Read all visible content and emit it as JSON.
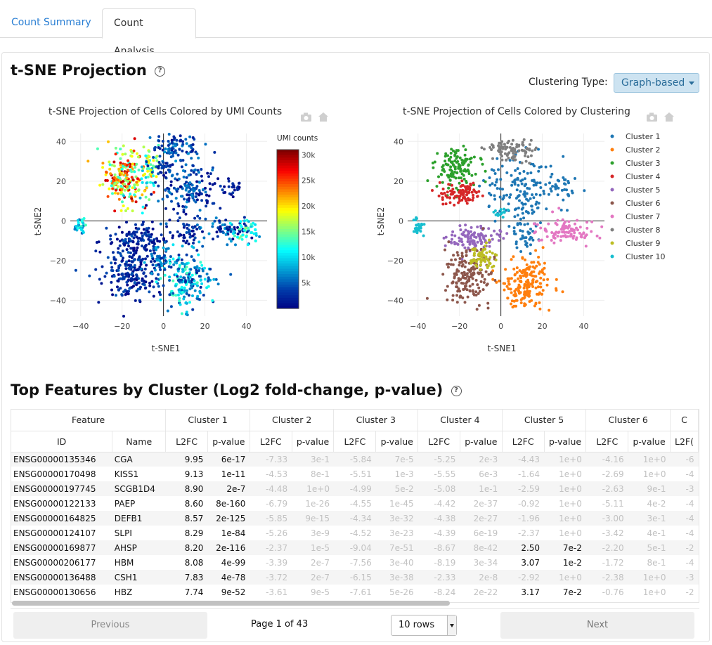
{
  "tabs": [
    {
      "label": "Count Summary"
    },
    {
      "label": "Count Analysis"
    }
  ],
  "tsne_section": {
    "title": "t-SNE Projection",
    "help_glyph": "?",
    "clustering_type_label": "Clustering Type:",
    "clustering_type_value": "Graph-based"
  },
  "features_section": {
    "title": "Top Features by Cluster (Log2 fold-change, p-value)",
    "help_glyph": "?"
  },
  "chart_data": [
    {
      "type": "scatter",
      "title": "t-SNE Projection of Cells Colored by UMI Counts",
      "xlabel": "t-SNE1",
      "ylabel": "t-SNE2",
      "xlim": [
        -45,
        50
      ],
      "ylim": [
        -48,
        44
      ],
      "xticks": [
        -40,
        -20,
        0,
        20,
        40
      ],
      "yticks": [
        40,
        20,
        0,
        -20,
        -40
      ],
      "colorbar": {
        "title": "UMI counts",
        "range": [
          0,
          31000
        ],
        "ticks": [
          {
            "value": 30000,
            "label": "30k"
          },
          {
            "value": 25000,
            "label": "25k"
          },
          {
            "value": 20000,
            "label": "20k"
          },
          {
            "value": 15000,
            "label": "15k"
          },
          {
            "value": 10000,
            "label": "10k"
          },
          {
            "value": 5000,
            "label": "5k"
          }
        ]
      },
      "groups": [
        {
          "cx": -19,
          "cy": 22,
          "sx": 5,
          "sy": 7,
          "n": 200,
          "umi": [
            12000,
            30000
          ]
        },
        {
          "cx": -9,
          "cy": 25,
          "sx": 3,
          "sy": 8,
          "n": 60,
          "umi": [
            8000,
            22000
          ]
        },
        {
          "cx": 5,
          "cy": 36,
          "sx": 6,
          "sy": 4,
          "n": 90,
          "umi": [
            1000,
            8000
          ]
        },
        {
          "cx": 12,
          "cy": 15,
          "sx": 8,
          "sy": 8,
          "n": 160,
          "umi": [
            500,
            7000
          ]
        },
        {
          "cx": 1,
          "cy": 27,
          "sx": 3,
          "sy": 2,
          "n": 25,
          "umi": [
            500,
            5000
          ]
        },
        {
          "cx": -40,
          "cy": -3,
          "sx": 1.3,
          "sy": 2,
          "n": 30,
          "umi": [
            4000,
            14000
          ]
        },
        {
          "cx": -12,
          "cy": -9,
          "sx": 7,
          "sy": 4,
          "n": 120,
          "umi": [
            300,
            5000
          ]
        },
        {
          "cx": -16,
          "cy": -26,
          "sx": 7,
          "sy": 7,
          "n": 200,
          "umi": [
            300,
            5000
          ]
        },
        {
          "cx": -2,
          "cy": -20,
          "sx": 3,
          "sy": 4,
          "n": 55,
          "umi": [
            2000,
            9000
          ]
        },
        {
          "cx": 12,
          "cy": -31,
          "sx": 6,
          "sy": 7,
          "n": 190,
          "umi": [
            2000,
            14000
          ]
        },
        {
          "cx": 12,
          "cy": -6,
          "sx": 3,
          "sy": 5,
          "n": 40,
          "umi": [
            300,
            5000
          ]
        },
        {
          "cx": 30,
          "cy": -5,
          "sx": 6,
          "sy": 3,
          "n": 70,
          "umi": [
            500,
            8000
          ]
        },
        {
          "cx": 40,
          "cy": -6,
          "sx": 3,
          "sy": 3,
          "n": 40,
          "umi": [
            9000,
            16000
          ]
        },
        {
          "cx": 34,
          "cy": 17,
          "sx": 3,
          "sy": 2,
          "n": 25,
          "umi": [
            300,
            4000
          ]
        }
      ]
    },
    {
      "type": "scatter",
      "title": "t-SNE Projection of Cells Colored by Clustering",
      "xlabel": "t-SNE1",
      "ylabel": "t-SNE2",
      "xlim": [
        -45,
        50
      ],
      "ylim": [
        -48,
        44
      ],
      "xticks": [
        -40,
        -20,
        0,
        20,
        40
      ],
      "yticks": [
        40,
        20,
        0,
        -20,
        -40
      ],
      "series": [
        {
          "name": "Cluster 1",
          "color": "#1f77b4",
          "groups": [
            {
              "cx": 10,
              "cy": 16,
              "sx": 8,
              "sy": 8,
              "n": 150
            },
            {
              "cx": 12,
              "cy": -7,
              "sx": 3,
              "sy": 5,
              "n": 40
            },
            {
              "cx": 30,
              "cy": 18,
              "sx": 4,
              "sy": 3,
              "n": 25
            }
          ]
        },
        {
          "cx_note": "",
          "name": "Cluster 2",
          "color": "#ff7f0e",
          "groups": [
            {
              "cx": 12,
              "cy": -31,
              "sx": 6,
              "sy": 7,
              "n": 190
            }
          ]
        },
        {
          "name": "Cluster 3",
          "color": "#2ca02c",
          "groups": [
            {
              "cx": -22,
              "cy": 26,
              "sx": 5,
              "sy": 5,
              "n": 130
            }
          ]
        },
        {
          "name": "Cluster 4",
          "color": "#d62728",
          "groups": [
            {
              "cx": -19,
              "cy": 14,
              "sx": 5,
              "sy": 3,
              "n": 90
            }
          ]
        },
        {
          "name": "Cluster 5",
          "color": "#9467bd",
          "groups": [
            {
              "cx": -12,
              "cy": -9,
              "sx": 6,
              "sy": 3,
              "n": 110
            }
          ]
        },
        {
          "name": "Cluster 6",
          "color": "#8c564b",
          "groups": [
            {
              "cx": -17,
              "cy": -27,
              "sx": 6,
              "sy": 7,
              "n": 170
            }
          ]
        },
        {
          "name": "Cluster 7",
          "color": "#e377c2",
          "groups": [
            {
              "cx": 32,
              "cy": -5,
              "sx": 7,
              "sy": 3,
              "n": 100
            }
          ]
        },
        {
          "name": "Cluster 8",
          "color": "#7f7f7f",
          "groups": [
            {
              "cx": 5,
              "cy": 36,
              "sx": 6,
              "sy": 3,
              "n": 90
            }
          ]
        },
        {
          "name": "Cluster 9",
          "color": "#bcbd22",
          "groups": [
            {
              "cx": -9,
              "cy": -18,
              "sx": 3,
              "sy": 3,
              "n": 60
            }
          ]
        },
        {
          "name": "Cluster 10",
          "color": "#17becf",
          "groups": [
            {
              "cx": -40,
              "cy": -3,
              "sx": 1.3,
              "sy": 2,
              "n": 30
            },
            {
              "cx": 0,
              "cy": 4,
              "sx": 2,
              "sy": 1,
              "n": 15
            }
          ]
        }
      ]
    }
  ],
  "table": {
    "header_groups": [
      "Feature",
      "Cluster 1",
      "Cluster 2",
      "Cluster 3",
      "Cluster 4",
      "Cluster 5",
      "Cluster 6",
      "C"
    ],
    "sub_headers": [
      "ID",
      "Name",
      "L2FC",
      "p-value",
      "L2FC",
      "p-value",
      "L2FC",
      "p-value",
      "L2FC",
      "p-value",
      "L2FC",
      "p-value",
      "L2FC",
      "p-value",
      "L2F("
    ],
    "rows": [
      {
        "id": "ENSG00000135346",
        "name": "CGA",
        "c1": [
          "9.95",
          "6e-17"
        ],
        "c2": [
          "-7.33",
          "3e-1"
        ],
        "c3": [
          "-5.84",
          "7e-5"
        ],
        "c4": [
          "-5.25",
          "2e-3"
        ],
        "c5": [
          "-4.43",
          "1e+0"
        ],
        "c6": [
          "-4.16",
          "1e+0"
        ],
        "c7": "-6",
        "c5_strong": false
      },
      {
        "id": "ENSG00000170498",
        "name": "KISS1",
        "c1": [
          "9.13",
          "1e-11"
        ],
        "c2": [
          "-4.53",
          "8e-1"
        ],
        "c3": [
          "-5.51",
          "1e-3"
        ],
        "c4": [
          "-5.55",
          "6e-3"
        ],
        "c5": [
          "-1.64",
          "1e+0"
        ],
        "c6": [
          "-2.69",
          "1e+0"
        ],
        "c7": "-4",
        "c5_strong": false
      },
      {
        "id": "ENSG00000197745",
        "name": "SCGB1D4",
        "c1": [
          "8.90",
          "2e-7"
        ],
        "c2": [
          "-4.48",
          "1e+0"
        ],
        "c3": [
          "-4.99",
          "5e-2"
        ],
        "c4": [
          "-5.08",
          "1e-1"
        ],
        "c5": [
          "-2.59",
          "1e+0"
        ],
        "c6": [
          "-2.63",
          "9e-1"
        ],
        "c7": "-3",
        "c5_strong": false
      },
      {
        "id": "ENSG00000122133",
        "name": "PAEP",
        "c1": [
          "8.60",
          "8e-160"
        ],
        "c2": [
          "-6.79",
          "1e-26"
        ],
        "c3": [
          "-4.55",
          "1e-45"
        ],
        "c4": [
          "-4.42",
          "2e-37"
        ],
        "c5": [
          "-0.92",
          "1e+0"
        ],
        "c6": [
          "-5.11",
          "4e-2"
        ],
        "c7": "-4",
        "c5_strong": false
      },
      {
        "id": "ENSG00000164825",
        "name": "DEFB1",
        "c1": [
          "8.57",
          "2e-125"
        ],
        "c2": [
          "-5.85",
          "9e-15"
        ],
        "c3": [
          "-4.34",
          "3e-32"
        ],
        "c4": [
          "-4.38",
          "2e-27"
        ],
        "c5": [
          "-1.96",
          "1e+0"
        ],
        "c6": [
          "-3.00",
          "3e-1"
        ],
        "c7": "-4",
        "c5_strong": false
      },
      {
        "id": "ENSG00000124107",
        "name": "SLPI",
        "c1": [
          "8.29",
          "1e-84"
        ],
        "c2": [
          "-5.26",
          "3e-9"
        ],
        "c3": [
          "-4.52",
          "3e-23"
        ],
        "c4": [
          "-4.39",
          "6e-19"
        ],
        "c5": [
          "-2.37",
          "1e+0"
        ],
        "c6": [
          "-3.42",
          "4e-1"
        ],
        "c7": "-4",
        "c5_strong": false
      },
      {
        "id": "ENSG00000169877",
        "name": "AHSP",
        "c1": [
          "8.20",
          "2e-116"
        ],
        "c2": [
          "-2.37",
          "1e-5"
        ],
        "c3": [
          "-9.04",
          "7e-51"
        ],
        "c4": [
          "-8.67",
          "8e-42"
        ],
        "c5": [
          "2.50",
          "7e-2"
        ],
        "c6": [
          "-2.20",
          "5e-1"
        ],
        "c7": "-2",
        "c5_strong": true
      },
      {
        "id": "ENSG00000206177",
        "name": "HBM",
        "c1": [
          "8.08",
          "4e-99"
        ],
        "c2": [
          "-3.39",
          "2e-7"
        ],
        "c3": [
          "-7.56",
          "3e-40"
        ],
        "c4": [
          "-8.19",
          "3e-34"
        ],
        "c5": [
          "3.07",
          "1e-2"
        ],
        "c6": [
          "-1.72",
          "8e-1"
        ],
        "c7": "-4",
        "c5_strong": true
      },
      {
        "id": "ENSG00000136488",
        "name": "CSH1",
        "c1": [
          "7.83",
          "4e-78"
        ],
        "c2": [
          "-3.72",
          "2e-7"
        ],
        "c3": [
          "-6.15",
          "3e-38"
        ],
        "c4": [
          "-2.33",
          "2e-8"
        ],
        "c5": [
          "-2.92",
          "1e+0"
        ],
        "c6": [
          "-2.38",
          "1e+0"
        ],
        "c7": "-3",
        "c5_strong": false
      },
      {
        "id": "ENSG00000130656",
        "name": "HBZ",
        "c1": [
          "7.74",
          "9e-52"
        ],
        "c2": [
          "-3.61",
          "9e-5"
        ],
        "c3": [
          "-7.61",
          "5e-26"
        ],
        "c4": [
          "-8.24",
          "2e-22"
        ],
        "c5": [
          "3.17",
          "7e-2"
        ],
        "c6": [
          "-0.76",
          "1e+0"
        ],
        "c7": "-2",
        "c5_strong": true
      }
    ]
  },
  "pager": {
    "previous_label": "Previous",
    "page_info": "Page 1 of 43",
    "rows_select": "10 rows",
    "next_label": "Next"
  }
}
